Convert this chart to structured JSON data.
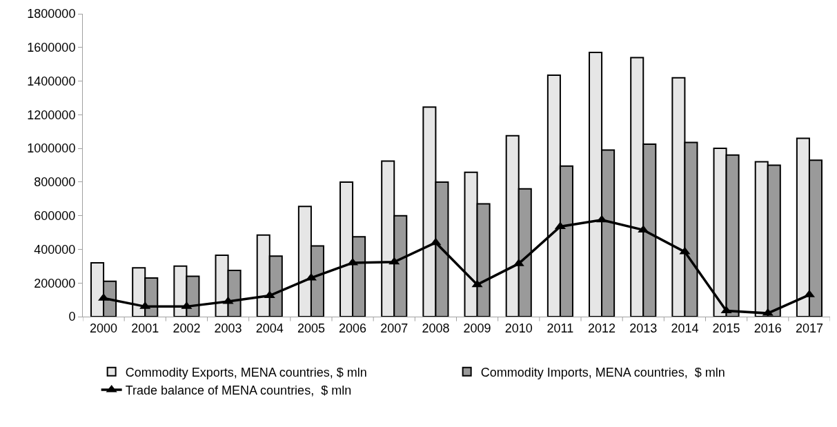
{
  "chart_data": {
    "type": "bar",
    "categories": [
      "2000",
      "2001",
      "2002",
      "2003",
      "2004",
      "2005",
      "2006",
      "2007",
      "2008",
      "2009",
      "2010",
      "2011",
      "2012",
      "2013",
      "2014",
      "2015",
      "2016",
      "2017"
    ],
    "series": [
      {
        "name": "Commodity Exports, MENA countries, $ mln",
        "color": "#e6e6e6",
        "values": [
          320000,
          290000,
          300000,
          365000,
          485000,
          655000,
          800000,
          925000,
          1245000,
          858000,
          1075000,
          1435000,
          1570000,
          1540000,
          1420000,
          1000000,
          920000,
          1060000
        ]
      },
      {
        "name": "Commodity Imports, MENA countries,  $ mln",
        "color": "#9a9a9a",
        "values": [
          210000,
          230000,
          240000,
          275000,
          360000,
          420000,
          475000,
          600000,
          800000,
          670000,
          760000,
          895000,
          990000,
          1025000,
          1035000,
          960000,
          900000,
          930000
        ]
      },
      {
        "name": "Trade balance of MENA countries,  $ mln",
        "type": "line",
        "color": "#000000",
        "marker": "triangle",
        "values": [
          110000,
          60000,
          60000,
          90000,
          125000,
          230000,
          320000,
          325000,
          440000,
          190000,
          315000,
          535000,
          575000,
          515000,
          385000,
          35000,
          20000,
          130000
        ]
      }
    ],
    "ylim": [
      0,
      1800000
    ],
    "yticks": [
      0,
      200000,
      400000,
      600000,
      800000,
      1000000,
      1200000,
      1400000,
      1600000,
      1800000
    ],
    "grid": false,
    "legend": "bottom"
  }
}
